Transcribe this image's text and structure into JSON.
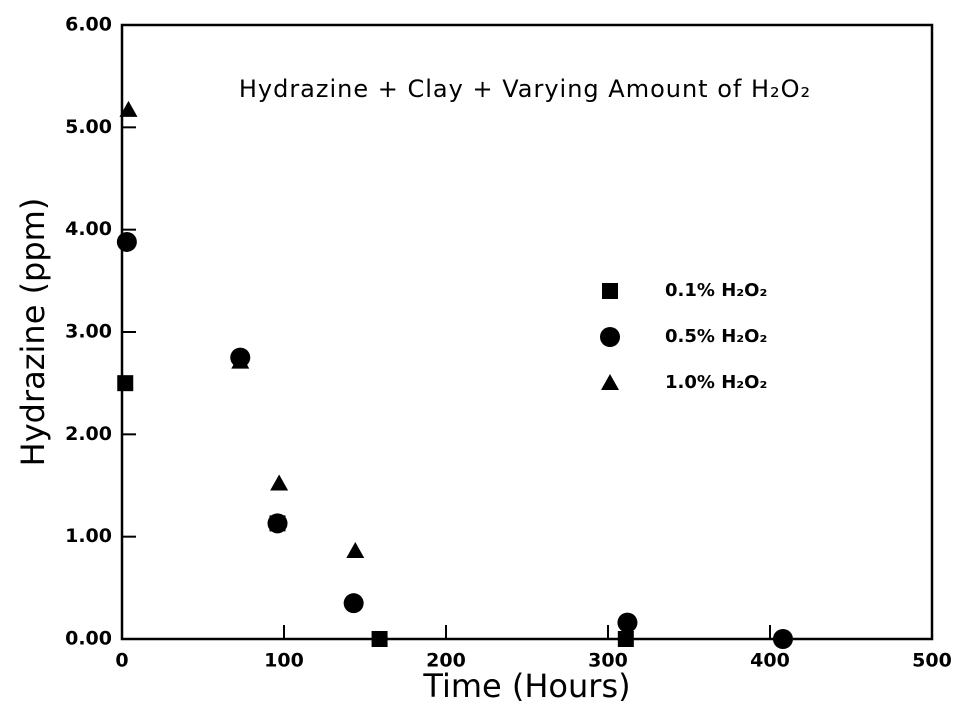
{
  "chart_data": {
    "type": "scatter",
    "title": "Hydrazine + Clay + Varying Amount of H₂O₂",
    "xlabel": "Time (Hours)",
    "ylabel": "Hydrazine (ppm)",
    "xlim": [
      0,
      500
    ],
    "xticks": [
      0,
      100,
      200,
      300,
      400,
      500
    ],
    "ylim": [
      0,
      6
    ],
    "yticks": [
      {
        "value": 0,
        "label": "0.00"
      },
      {
        "value": 1,
        "label": "1.00"
      },
      {
        "value": 2,
        "label": "2.00"
      },
      {
        "value": 3,
        "label": "3.00"
      },
      {
        "value": 4,
        "label": "4.00"
      },
      {
        "value": 5,
        "label": "5.00"
      },
      {
        "value": 6,
        "label": "6.00"
      }
    ],
    "grid": false,
    "series": [
      {
        "name": "0.1% H₂O₂",
        "color": "#000000",
        "marker": "square",
        "x": [
          2,
          96,
          159,
          311
        ],
        "values": [
          2.5,
          1.13,
          0,
          0
        ]
      },
      {
        "name": "0.5% H₂O₂",
        "color": "#000000",
        "marker": "circle",
        "x": [
          3,
          73,
          96,
          143,
          312,
          408
        ],
        "values": [
          3.88,
          2.75,
          1.13,
          0.35,
          0.16,
          0
        ]
      },
      {
        "name": "1.0% H₂O₂",
        "color": "#000000",
        "marker": "triangle",
        "x": [
          4,
          73,
          97,
          144
        ],
        "values": [
          5.17,
          2.71,
          1.52,
          0.86
        ]
      }
    ]
  }
}
